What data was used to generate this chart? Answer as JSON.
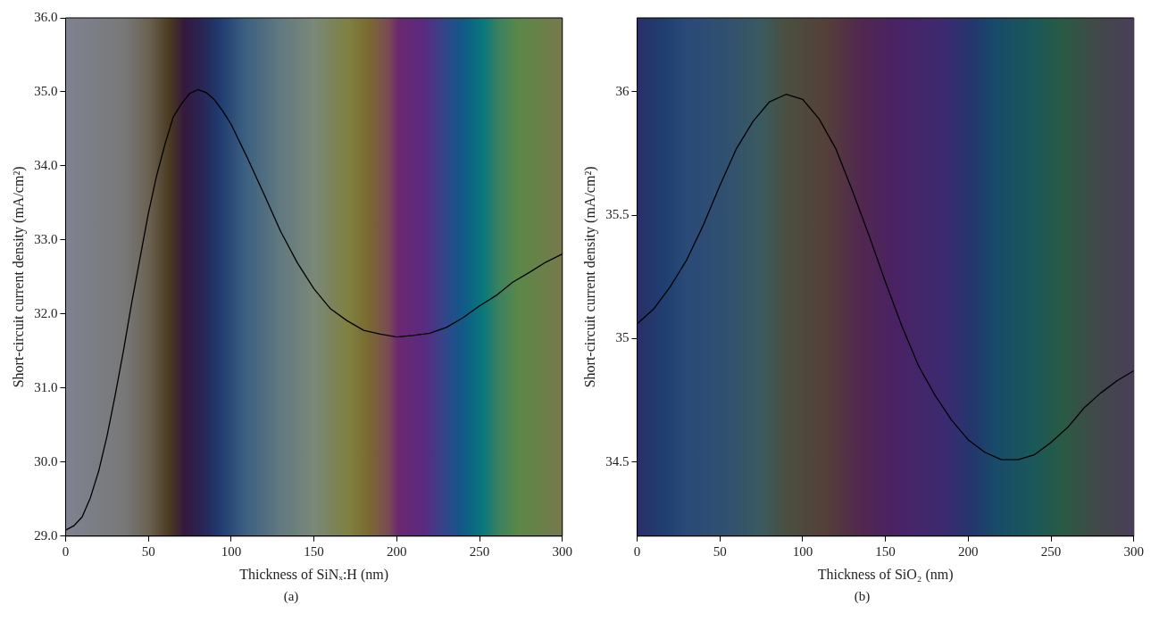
{
  "chart_data": [
    {
      "type": "line",
      "xlabel": "Thickness of SiNₓ:H (nm)",
      "ylabel": "Short-circuit current density (mA/cm²)",
      "annotations": [
        "(a)"
      ],
      "xlim": [
        0,
        300
      ],
      "xticks": [
        0,
        50,
        100,
        150,
        200,
        250,
        300
      ],
      "ylim": [
        29,
        36
      ],
      "yticks": [
        {
          "value": 29,
          "label": "29.0"
        },
        {
          "value": 30,
          "label": "30.0"
        },
        {
          "value": 31,
          "label": "31.0"
        },
        {
          "value": 32,
          "label": "32.0"
        },
        {
          "value": 33,
          "label": "33.0"
        },
        {
          "value": 34,
          "label": "34.0"
        },
        {
          "value": 35,
          "label": "35.0"
        },
        {
          "value": 36,
          "label": "36.0"
        }
      ],
      "grid": false,
      "legend": false,
      "marker": "none",
      "x": [
        0,
        5,
        10,
        15,
        20,
        25,
        30,
        35,
        40,
        45,
        50,
        55,
        60,
        65,
        70,
        75,
        80,
        85,
        90,
        95,
        100,
        110,
        120,
        130,
        140,
        150,
        160,
        170,
        180,
        190,
        200,
        210,
        220,
        230,
        240,
        250,
        260,
        270,
        280,
        290,
        300
      ],
      "series": [
        {
          "color": "#000000",
          "values": [
            29.08,
            29.14,
            29.26,
            29.52,
            29.88,
            30.35,
            30.91,
            31.51,
            32.16,
            32.76,
            33.36,
            33.87,
            34.29,
            34.66,
            34.84,
            34.98,
            35.03,
            34.99,
            34.89,
            34.74,
            34.56,
            34.1,
            33.61,
            33.11,
            32.69,
            32.34,
            32.07,
            31.91,
            31.78,
            31.73,
            31.69,
            31.71,
            31.74,
            31.82,
            31.95,
            32.11,
            32.25,
            32.43,
            32.56,
            32.7,
            32.81
          ]
        }
      ]
    },
    {
      "type": "line",
      "xlabel": "Thickness of SiO₂ (nm)",
      "ylabel": "Short-circuit current density (mA/cm²)",
      "annotations": [
        "(b)"
      ],
      "xlim": [
        0,
        300
      ],
      "xticks": [
        0,
        50,
        100,
        150,
        200,
        250,
        300
      ],
      "ylim": [
        34.2,
        36.3
      ],
      "yticks": [
        34.5,
        35,
        35.5,
        36
      ],
      "grid": false,
      "legend": false,
      "marker": "none",
      "x": [
        0,
        10,
        20,
        30,
        40,
        50,
        60,
        70,
        80,
        90,
        100,
        110,
        120,
        130,
        140,
        150,
        160,
        170,
        180,
        190,
        200,
        210,
        220,
        230,
        240,
        250,
        260,
        270,
        280,
        290,
        300
      ],
      "series": [
        {
          "color": "#000000",
          "values": [
            35.06,
            35.12,
            35.21,
            35.32,
            35.46,
            35.62,
            35.77,
            35.88,
            35.96,
            35.99,
            35.97,
            35.89,
            35.77,
            35.6,
            35.42,
            35.23,
            35.05,
            34.89,
            34.77,
            34.67,
            34.59,
            34.54,
            34.51,
            34.51,
            34.53,
            34.58,
            34.64,
            34.72,
            34.78,
            34.83,
            34.87
          ]
        }
      ]
    }
  ]
}
